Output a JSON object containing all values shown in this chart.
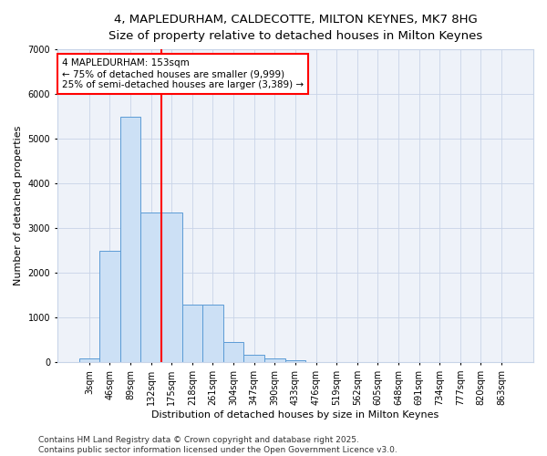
{
  "title_line1": "4, MAPLEDURHAM, CALDECOTTE, MILTON KEYNES, MK7 8HG",
  "title_line2": "Size of property relative to detached houses in Milton Keynes",
  "xlabel": "Distribution of detached houses by size in Milton Keynes",
  "ylabel": "Number of detached properties",
  "categories": [
    "3sqm",
    "46sqm",
    "89sqm",
    "132sqm",
    "175sqm",
    "218sqm",
    "261sqm",
    "304sqm",
    "347sqm",
    "390sqm",
    "433sqm",
    "476sqm",
    "519sqm",
    "562sqm",
    "605sqm",
    "648sqm",
    "691sqm",
    "734sqm",
    "777sqm",
    "820sqm",
    "863sqm"
  ],
  "values": [
    80,
    2500,
    5500,
    3350,
    3350,
    1300,
    1300,
    460,
    175,
    80,
    50,
    5,
    0,
    0,
    0,
    0,
    0,
    0,
    0,
    0,
    0
  ],
  "bar_color": "#cce0f5",
  "bar_edge_color": "#5b9bd5",
  "vline_color": "red",
  "annotation_text": "4 MAPLEDURHAM: 153sqm\n← 75% of detached houses are smaller (9,999)\n25% of semi-detached houses are larger (3,389) →",
  "annotation_box_color": "white",
  "annotation_box_edge": "red",
  "ylim": [
    0,
    7000
  ],
  "yticks": [
    0,
    1000,
    2000,
    3000,
    4000,
    5000,
    6000,
    7000
  ],
  "footer_line1": "Contains HM Land Registry data © Crown copyright and database right 2025.",
  "footer_line2": "Contains public sector information licensed under the Open Government Licence v3.0.",
  "background_color": "#eef2f9",
  "grid_color": "#c8d4e8",
  "title_fontsize": 9.5,
  "axis_label_fontsize": 8,
  "tick_fontsize": 7,
  "footer_fontsize": 6.5,
  "annotation_fontsize": 7.5
}
